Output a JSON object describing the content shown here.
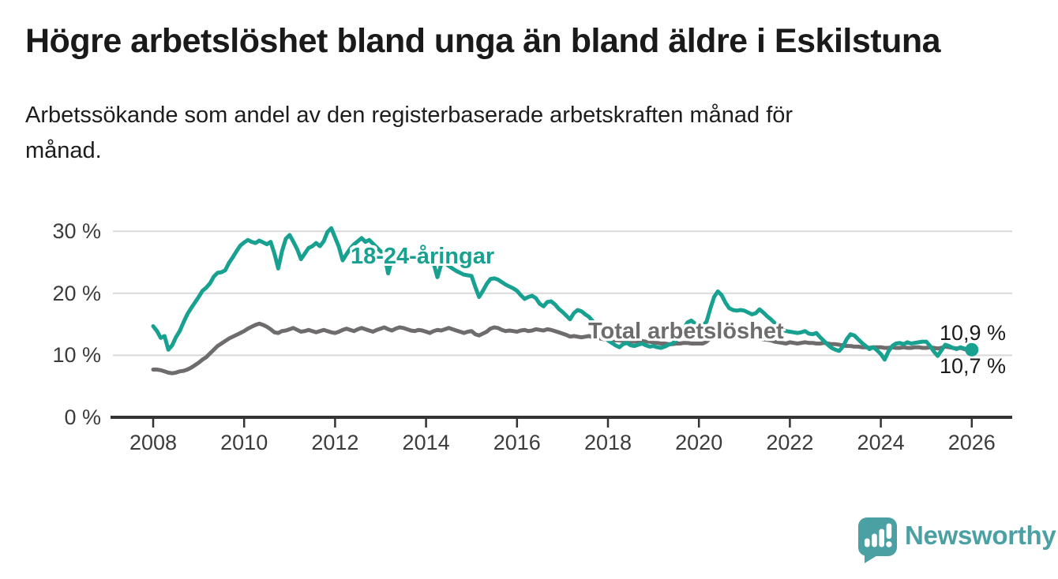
{
  "header": {
    "title": "Högre arbetslöshet bland unga än bland äldre i Eskilstuna",
    "subtitle": "Arbetssökande som andel av den registerbaserade arbetskraften månad för månad."
  },
  "chart_data": {
    "type": "line",
    "unit": "%",
    "x_start_year": 2008,
    "x_frequency": "monthly",
    "xlim": [
      2007.1,
      2026.9
    ],
    "ylim": [
      0,
      32
    ],
    "grid": "horizontal",
    "gridline_values": [
      10,
      20,
      30
    ],
    "y_ticks": [
      {
        "value": 0,
        "label": "0 %"
      },
      {
        "value": 10,
        "label": "10 %"
      },
      {
        "value": 20,
        "label": "20 %"
      },
      {
        "value": 30,
        "label": "30 %"
      }
    ],
    "x_ticks": [
      {
        "year": 2008,
        "label": "2008"
      },
      {
        "year": 2010,
        "label": "2010"
      },
      {
        "year": 2012,
        "label": "2012"
      },
      {
        "year": 2014,
        "label": "2014"
      },
      {
        "year": 2016,
        "label": "2016"
      },
      {
        "year": 2018,
        "label": "2018"
      },
      {
        "year": 2020,
        "label": "2020"
      },
      {
        "year": 2022,
        "label": "2022"
      },
      {
        "year": 2024,
        "label": "2024"
      },
      {
        "year": 2026,
        "label": "2026"
      }
    ],
    "series": [
      {
        "name": "18-24-åringar",
        "color": "#18a190",
        "end_label": "10,9 %",
        "end_dot": true,
        "values": [
          14.7,
          13.9,
          12.8,
          13.1,
          10.9,
          11.6,
          12.9,
          13.9,
          15.3,
          16.6,
          17.6,
          18.5,
          19.4,
          20.4,
          20.9,
          21.6,
          22.7,
          23.3,
          23.4,
          23.7,
          24.9,
          25.8,
          26.8,
          27.7,
          28.2,
          28.6,
          28.3,
          28.1,
          28.5,
          28.2,
          27.9,
          28.3,
          26.4,
          24.0,
          26.8,
          28.8,
          29.4,
          28.3,
          27.1,
          25.5,
          26.4,
          27.3,
          27.6,
          28.1,
          27.6,
          28.4,
          29.9,
          30.5,
          29.0,
          27.5,
          25.3,
          26.3,
          27.2,
          27.9,
          28.4,
          28.9,
          28.3,
          28.6,
          28.0,
          27.4,
          26.8,
          26.2,
          23.2,
          25.5,
          26.4,
          26.6,
          26.3,
          26.0,
          25.7,
          25.9,
          25.5,
          25.8,
          25.6,
          25.1,
          24.8,
          22.6,
          24.7,
          24.9,
          24.4,
          24.0,
          23.6,
          23.3,
          23.0,
          22.9,
          22.8,
          21.0,
          19.4,
          20.4,
          21.5,
          22.3,
          22.4,
          22.2,
          21.8,
          21.4,
          21.1,
          20.8,
          20.4,
          19.7,
          19.1,
          19.4,
          19.6,
          19.2,
          18.3,
          17.9,
          18.6,
          18.7,
          18.2,
          17.5,
          17.0,
          16.4,
          15.8,
          16.8,
          17.3,
          17.1,
          16.6,
          16.2,
          15.5,
          14.7,
          13.8,
          13.0,
          12.4,
          12.0,
          11.6,
          11.3,
          11.8,
          12.0,
          11.6,
          11.5,
          11.7,
          11.9,
          11.6,
          11.4,
          11.5,
          11.3,
          11.2,
          11.4,
          11.7,
          11.9,
          12.4,
          13.2,
          14.3,
          15.3,
          15.6,
          15.1,
          14.9,
          14.8,
          15.4,
          17.5,
          19.4,
          20.3,
          19.7,
          18.5,
          17.6,
          17.3,
          17.2,
          17.3,
          17.2,
          16.9,
          16.6,
          16.8,
          17.4,
          16.9,
          16.3,
          15.8,
          15.2,
          14.7,
          14.2,
          13.9,
          13.8,
          13.7,
          13.6,
          13.7,
          13.9,
          13.5,
          13.4,
          13.6,
          12.9,
          12.3,
          11.7,
          11.2,
          10.9,
          10.7,
          11.4,
          12.6,
          13.4,
          13.2,
          12.6,
          12.0,
          11.5,
          11.0,
          11.3,
          10.8,
          10.2,
          9.3,
          10.6,
          11.5,
          11.9,
          12.0,
          11.8,
          12.1,
          11.9,
          12.0,
          12.1,
          12.2,
          12.2,
          11.5,
          10.6,
          9.9,
          10.8,
          11.7,
          11.5,
          11.2,
          11.0,
          11.3,
          11.1,
          10.9,
          10.9
        ]
      },
      {
        "name": "Total arbetslöshet",
        "color": "#6e6c6d",
        "end_label": "10,7 %",
        "end_dot": false,
        "values": [
          7.7,
          7.7,
          7.6,
          7.4,
          7.2,
          7.1,
          7.2,
          7.4,
          7.5,
          7.7,
          8.0,
          8.4,
          8.8,
          9.3,
          9.7,
          10.3,
          10.9,
          11.5,
          11.9,
          12.3,
          12.7,
          13.0,
          13.3,
          13.6,
          13.9,
          14.3,
          14.6,
          14.9,
          15.1,
          14.9,
          14.6,
          14.2,
          13.7,
          13.6,
          13.9,
          14.0,
          14.2,
          14.4,
          14.1,
          13.8,
          13.9,
          14.1,
          13.9,
          13.7,
          13.9,
          14.1,
          13.9,
          13.7,
          13.6,
          13.8,
          14.1,
          14.3,
          14.1,
          13.9,
          14.2,
          14.4,
          14.2,
          14.0,
          13.8,
          14.1,
          14.3,
          14.5,
          14.2,
          14.0,
          14.3,
          14.5,
          14.4,
          14.2,
          14.0,
          13.9,
          14.1,
          14.0,
          13.8,
          13.6,
          13.9,
          14.1,
          14.0,
          14.2,
          14.4,
          14.2,
          14.0,
          13.8,
          13.6,
          13.8,
          13.9,
          13.4,
          13.2,
          13.5,
          13.8,
          14.3,
          14.5,
          14.4,
          14.1,
          13.9,
          14.0,
          13.9,
          13.8,
          14.0,
          14.1,
          13.9,
          14.0,
          14.2,
          14.1,
          14.0,
          14.2,
          14.1,
          13.9,
          13.7,
          13.5,
          13.3,
          13.0,
          13.1,
          13.0,
          12.9,
          13.0,
          13.1,
          12.9,
          12.8,
          12.7,
          12.6,
          12.6,
          12.5,
          12.4,
          12.4,
          12.3,
          12.3,
          12.2,
          12.2,
          12.3,
          12.3,
          12.2,
          12.2,
          12.1,
          12.0,
          11.9,
          11.9,
          11.8,
          11.8,
          11.9,
          11.9,
          12.0,
          12.0,
          11.9,
          11.9,
          11.9,
          11.9,
          12.2,
          12.7,
          13.1,
          13.4,
          13.4,
          13.3,
          13.2,
          13.1,
          13.0,
          13.0,
          13.0,
          12.9,
          12.8,
          12.8,
          12.7,
          12.6,
          12.5,
          12.4,
          12.2,
          12.1,
          12.0,
          11.9,
          12.1,
          12.0,
          11.9,
          12.0,
          12.1,
          12.0,
          12.0,
          11.9,
          11.9,
          12.0,
          11.9,
          11.8,
          11.8,
          11.7,
          11.6,
          11.5,
          11.5,
          11.4,
          11.4,
          11.3,
          11.3,
          11.2,
          11.3,
          11.3,
          11.3,
          11.2,
          11.2,
          11.3,
          11.2,
          11.2,
          11.3,
          11.2,
          11.2,
          11.3,
          11.3,
          11.2,
          11.2,
          11.3,
          11.2,
          11.1,
          11.2,
          11.4,
          11.3,
          11.2,
          11.1,
          11.2,
          11.0,
          10.8,
          10.7
        ]
      }
    ]
  },
  "footer": {
    "brand": "Newsworthy",
    "brand_color": "#4ba0a4"
  }
}
